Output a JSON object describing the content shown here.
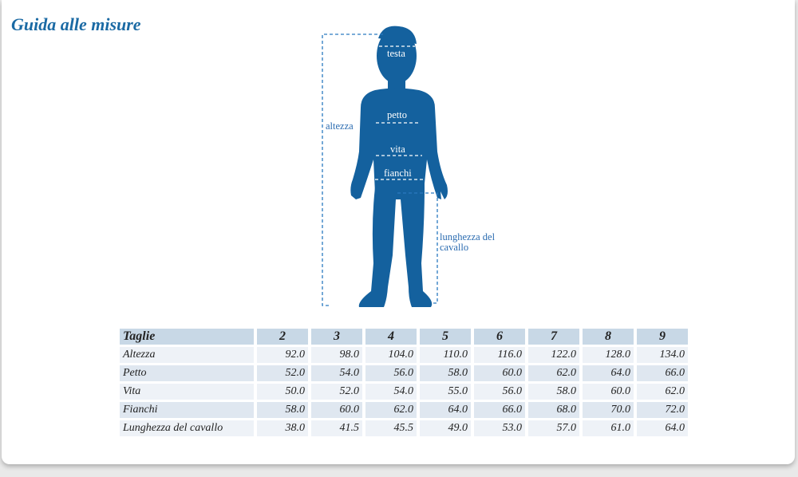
{
  "title": "Guida alle misure",
  "figure": {
    "color": "#14619e",
    "labels": {
      "testa": "testa",
      "petto": "petto",
      "vita": "vita",
      "fianchi": "fianchi",
      "altezza": "altezza",
      "cavallo": "lunghezza del cavallo"
    }
  },
  "table": {
    "header": [
      "Taglie",
      "2",
      "3",
      "4",
      "5",
      "6",
      "7",
      "8",
      "9"
    ],
    "rows": [
      [
        "Altezza",
        "92.0",
        "98.0",
        "104.0",
        "110.0",
        "116.0",
        "122.0",
        "128.0",
        "134.0"
      ],
      [
        "Petto",
        "52.0",
        "54.0",
        "56.0",
        "58.0",
        "60.0",
        "62.0",
        "64.0",
        "66.0"
      ],
      [
        "Vita",
        "50.0",
        "52.0",
        "54.0",
        "55.0",
        "56.0",
        "58.0",
        "60.0",
        "62.0"
      ],
      [
        "Fianchi",
        "58.0",
        "60.0",
        "62.0",
        "64.0",
        "66.0",
        "68.0",
        "70.0",
        "72.0"
      ],
      [
        "Lunghezza del cavallo",
        "38.0",
        "41.5",
        "45.5",
        "49.0",
        "53.0",
        "57.0",
        "61.0",
        "64.0"
      ]
    ]
  }
}
